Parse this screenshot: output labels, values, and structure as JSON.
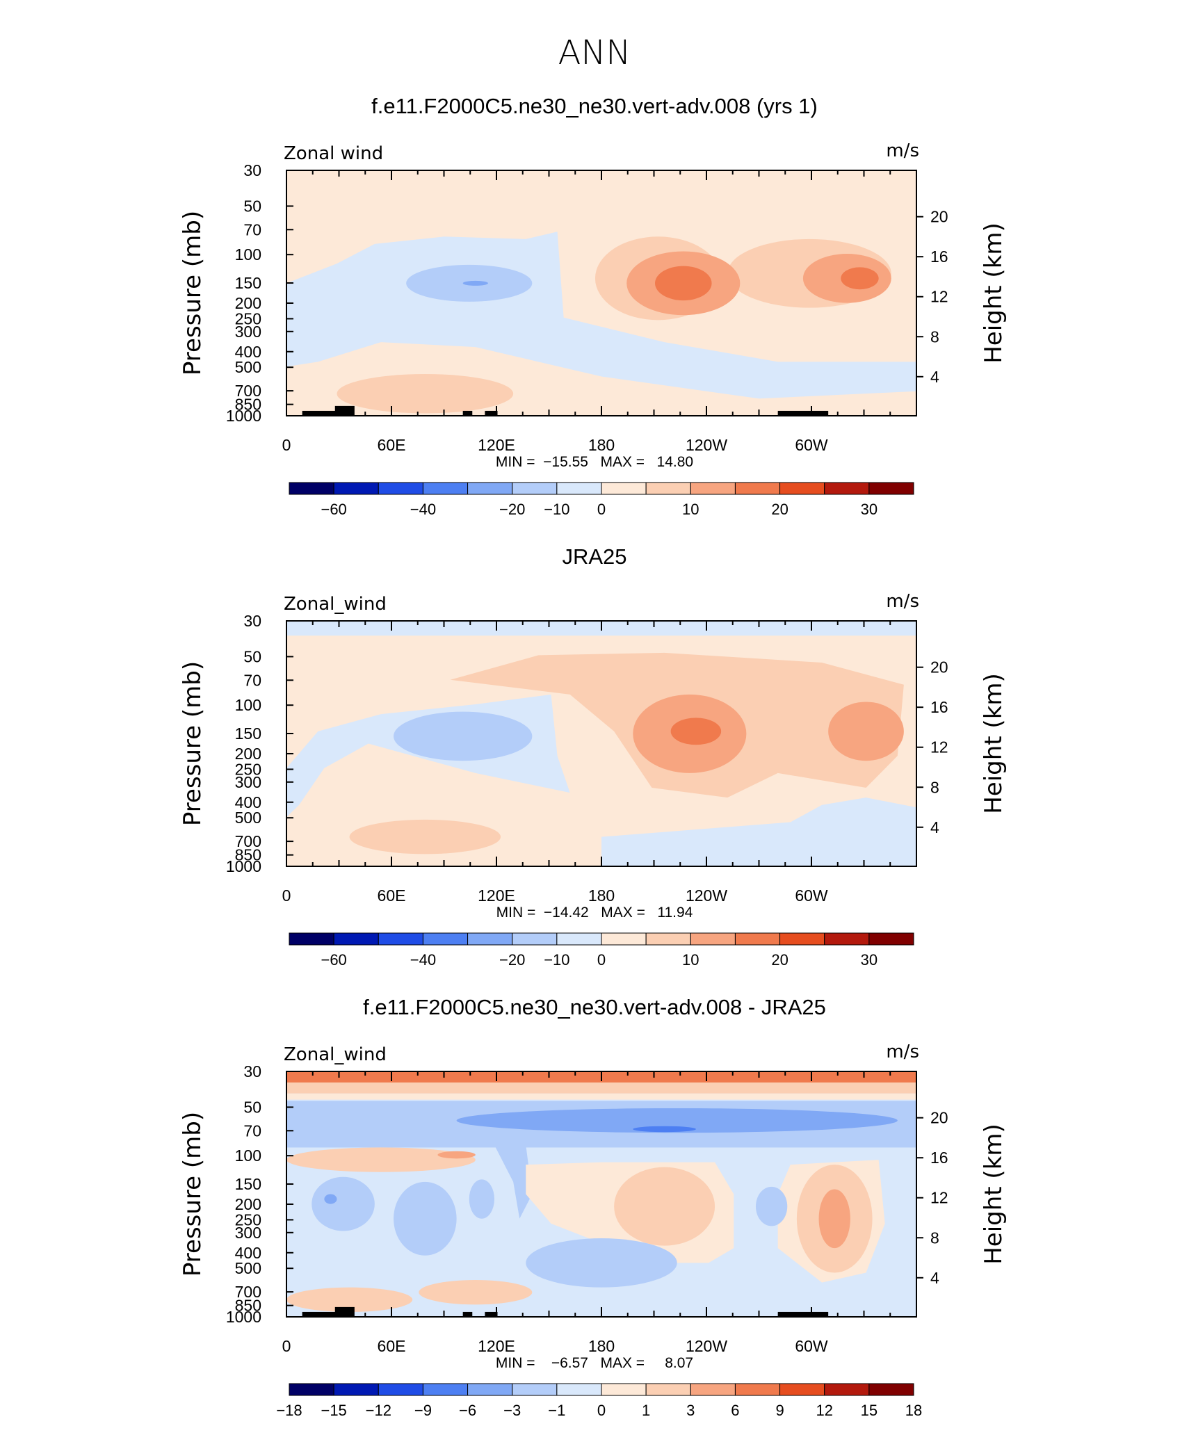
{
  "title": "ANN",
  "chart_data": [
    {
      "type": "heatmap",
      "title": "f.e11.F2000C5.ne30_ne30.vert-adv.008 (yrs 1)",
      "variable_label": "Zonal wind",
      "units_label": "m/s",
      "ylabel": "Pressure  (mb)",
      "ylabel_right": "Height  (km)",
      "x_ticks": [
        "0",
        "60E",
        "120E",
        "180",
        "120W",
        "60W"
      ],
      "y_ticks": [
        "30",
        "50",
        "70",
        "100",
        "150",
        "200",
        "250",
        "300",
        "400",
        "500",
        "700",
        "850",
        "1000"
      ],
      "y_ticks_right": [
        "20",
        "16",
        "12",
        "8",
        "4"
      ],
      "stats": "MIN =  −15.55   MAX =   14.80",
      "colorbar_labels": [
        "−60",
        "−40",
        "−20",
        "−10",
        "0",
        "10",
        "20",
        "30"
      ],
      "colors": [
        "#000066",
        "#0019b3",
        "#1f4ce6",
        "#4d7ff2",
        "#80a8f5",
        "#b3cdf9",
        "#d9e8fb",
        "#fde9d8",
        "#fbcfb3",
        "#f7a580",
        "#f07a4d",
        "#e64d1f",
        "#b3190d",
        "#800000"
      ]
    },
    {
      "type": "heatmap",
      "title": "JRA25",
      "variable_label": "Zonal_wind",
      "units_label": "m/s",
      "ylabel": "Pressure  (mb)",
      "ylabel_right": "Height  (km)",
      "x_ticks": [
        "0",
        "60E",
        "120E",
        "180",
        "120W",
        "60W"
      ],
      "y_ticks": [
        "30",
        "50",
        "70",
        "100",
        "150",
        "200",
        "250",
        "300",
        "400",
        "500",
        "700",
        "850",
        "1000"
      ],
      "y_ticks_right": [
        "20",
        "16",
        "12",
        "8",
        "4"
      ],
      "stats": "MIN =  −14.42   MAX =   11.94",
      "colorbar_labels": [
        "−60",
        "−40",
        "−20",
        "−10",
        "0",
        "10",
        "20",
        "30"
      ],
      "colors": [
        "#000066",
        "#0019b3",
        "#1f4ce6",
        "#4d7ff2",
        "#80a8f5",
        "#b3cdf9",
        "#d9e8fb",
        "#fde9d8",
        "#fbcfb3",
        "#f7a580",
        "#f07a4d",
        "#e64d1f",
        "#b3190d",
        "#800000"
      ]
    },
    {
      "type": "heatmap",
      "title": "f.e11.F2000C5.ne30_ne30.vert-adv.008 - JRA25",
      "variable_label": "Zonal_wind",
      "units_label": "m/s",
      "ylabel": "Pressure  (mb)",
      "ylabel_right": "Height  (km)",
      "x_ticks": [
        "0",
        "60E",
        "120E",
        "180",
        "120W",
        "60W"
      ],
      "y_ticks": [
        "30",
        "50",
        "70",
        "100",
        "150",
        "200",
        "250",
        "300",
        "400",
        "500",
        "700",
        "850",
        "1000"
      ],
      "y_ticks_right": [
        "20",
        "16",
        "12",
        "8",
        "4"
      ],
      "stats": "MIN =    −6.57   MAX =     8.07",
      "colorbar_labels": [
        "−18",
        "−15",
        "−12",
        "−9",
        "−6",
        "−3",
        "−1",
        "0",
        "1",
        "3",
        "6",
        "9",
        "12",
        "15",
        "18"
      ],
      "colors": [
        "#000066",
        "#0019b3",
        "#1f4ce6",
        "#4d7ff2",
        "#80a8f5",
        "#b3cdf9",
        "#d9e8fb",
        "#fde9d8",
        "#fbcfb3",
        "#f7a580",
        "#f07a4d",
        "#e64d1f",
        "#b3190d",
        "#800000"
      ]
    }
  ]
}
